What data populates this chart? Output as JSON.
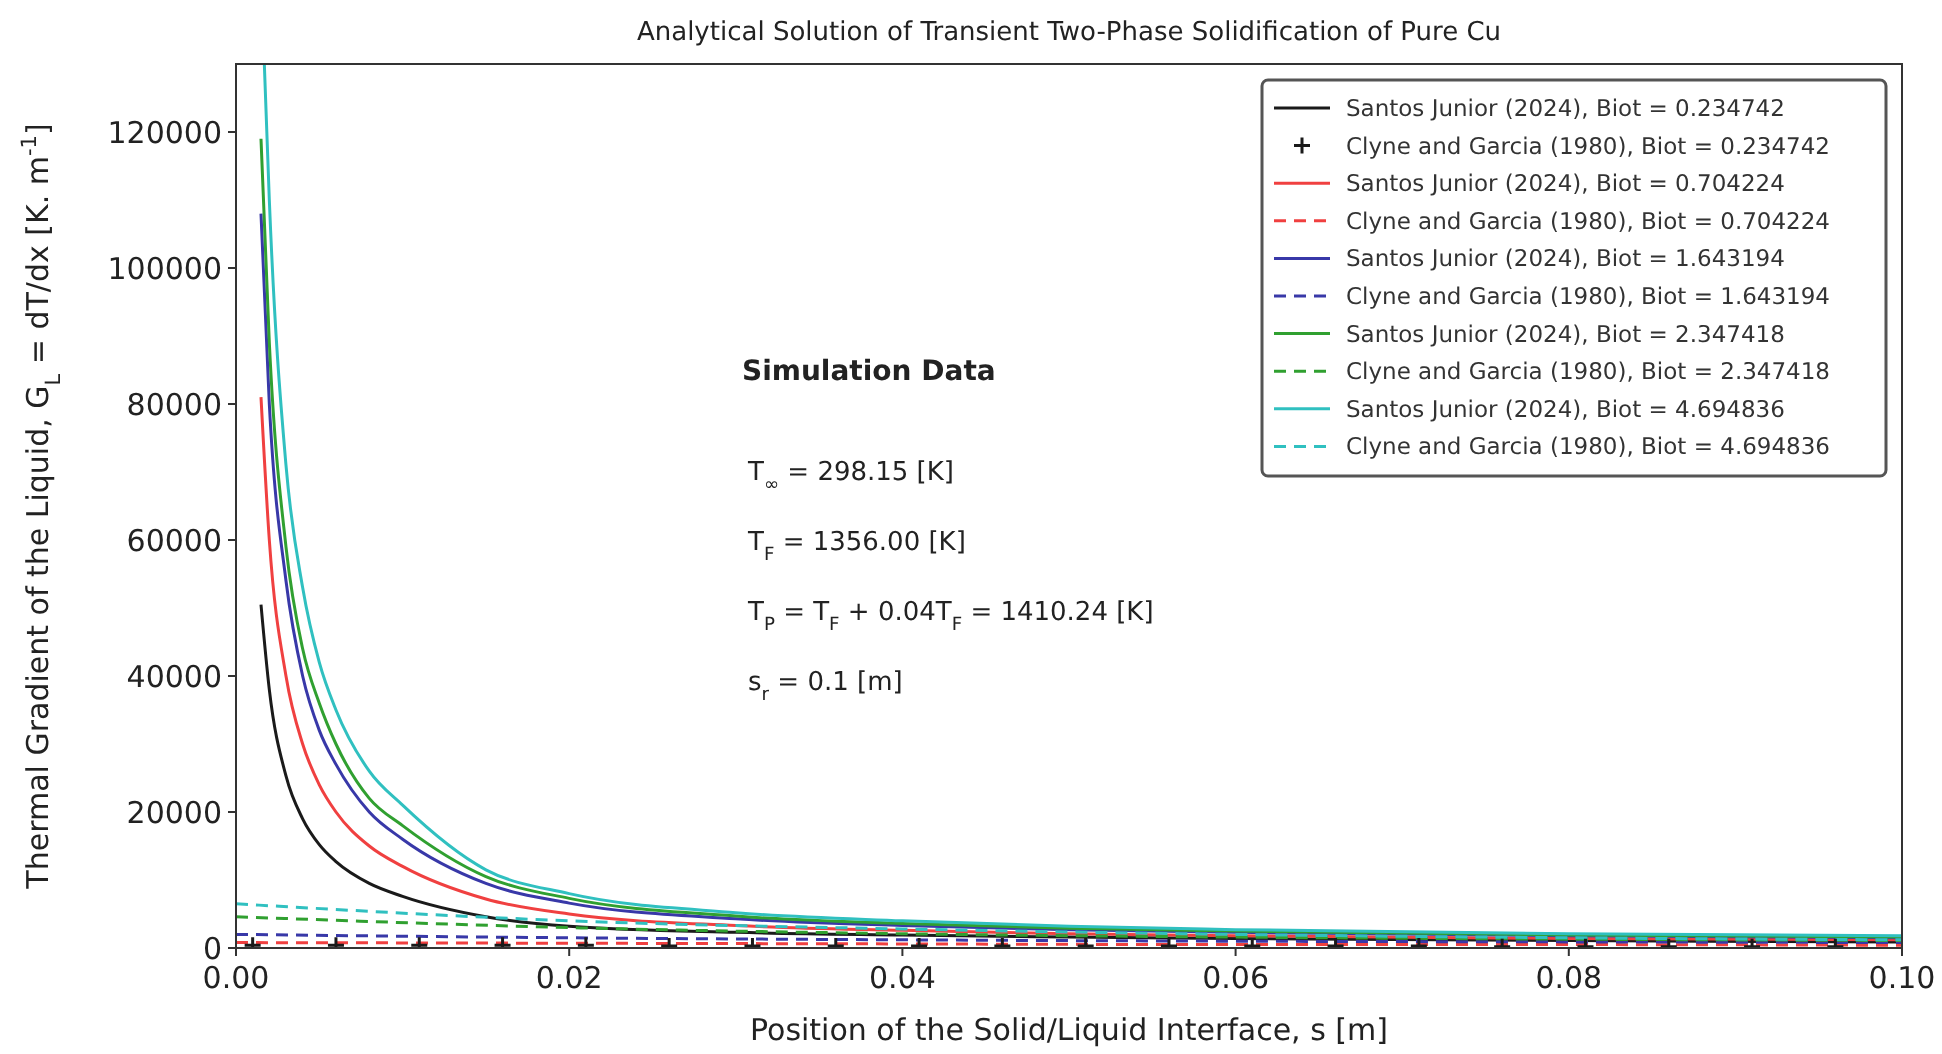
{
  "chart_data": {
    "type": "line",
    "title": "Analytical Solution of Transient Two-Phase Solidification of Pure Cu",
    "xlabel": "Position of the Solid/Liquid Interface, s [m]",
    "ylabel": "Thermal Gradient of the Liquid,  G$_{L}$ = dT/dx [K. m$^{-1}$]",
    "xlim": [
      0,
      0.1
    ],
    "ylim": [
      0,
      130000
    ],
    "xticks": [
      {
        "value": 0,
        "label": "0.00"
      },
      0.02,
      0.04,
      0.06,
      0.08,
      {
        "value": 0.1,
        "label": "0.10"
      }
    ],
    "yticks": [
      0,
      20000,
      40000,
      60000,
      80000,
      100000,
      120000
    ],
    "grid": false,
    "legend": "top right",
    "annotations": [
      "Simulation Data",
      "T$_{∞}$ = 298.15 [K]",
      "T$_{F}$ = 1356.00 [K]",
      "T$_{P}$ = T$_{F}$ + 0.04T$_{F}$ = 1410.24 [K]",
      "s$_{r}$ = 0.1 [m]"
    ],
    "series": [
      {
        "name": "Santos Junior (2024), Biot = 0.234742",
        "color": "#1a1a1a",
        "line_style": "solid",
        "marker": "none",
        "x": [
          0.0015,
          0.002,
          0.003,
          0.004,
          0.005,
          0.006,
          0.008,
          0.01,
          0.015,
          0.02,
          0.03,
          0.04,
          0.05,
          0.06,
          0.08,
          0.1
        ],
        "values": [
          50500,
          38000,
          25300,
          19000,
          15200,
          12700,
          9500,
          7600,
          4600,
          3200,
          2300,
          1900,
          1600,
          1400,
          1100,
          900
        ]
      },
      {
        "name": "Clyne and Garcia (1980), Biot = 0.234742",
        "type": "scatter",
        "color": "#1a1a1a",
        "marker": "cross",
        "x": [
          0.001,
          0.006,
          0.011,
          0.016,
          0.021,
          0.026,
          0.031,
          0.036,
          0.041,
          0.046,
          0.051,
          0.056,
          0.061,
          0.066,
          0.071,
          0.076,
          0.081,
          0.086,
          0.091,
          0.096
        ],
        "values": [
          400,
          400,
          400,
          400,
          400,
          300,
          300,
          300,
          300,
          300,
          300,
          300,
          300,
          300,
          300,
          200,
          200,
          200,
          200,
          200
        ]
      },
      {
        "name": "Santos Junior (2024), Biot = 0.704224",
        "color": "#f04040",
        "line_style": "solid",
        "marker": "none",
        "x": [
          0.0015,
          0.002,
          0.003,
          0.004,
          0.005,
          0.006,
          0.008,
          0.01,
          0.015,
          0.02,
          0.03,
          0.04,
          0.05,
          0.06,
          0.08,
          0.1
        ],
        "values": [
          81000,
          60000,
          40000,
          30000,
          24000,
          20000,
          15000,
          12000,
          7200,
          5000,
          3300,
          2600,
          2100,
          1800,
          1400,
          1200
        ]
      },
      {
        "name": "Clyne and Garcia (1980), Biot = 0.704224",
        "color": "#f04040",
        "line_style": "dashed",
        "marker": "none",
        "x": [
          0,
          0.02,
          0.04,
          0.06,
          0.08,
          0.1
        ],
        "values": [
          800,
          700,
          600,
          500,
          500,
          400
        ]
      },
      {
        "name": "Santos Junior (2024), Biot = 1.643194",
        "color": "#3838a8",
        "line_style": "solid",
        "marker": "none",
        "x": [
          0.0015,
          0.002,
          0.003,
          0.004,
          0.005,
          0.006,
          0.008,
          0.01,
          0.015,
          0.02,
          0.03,
          0.04,
          0.05,
          0.06,
          0.08,
          0.1
        ],
        "values": [
          108000,
          80000,
          54000,
          40000,
          32000,
          27000,
          20000,
          16000,
          9500,
          6600,
          4300,
          3300,
          2700,
          2300,
          1800,
          1500
        ]
      },
      {
        "name": "Clyne and Garcia (1980), Biot = 1.643194",
        "color": "#3838a8",
        "line_style": "dashed",
        "marker": "none",
        "x": [
          0,
          0.02,
          0.04,
          0.06,
          0.08,
          0.1
        ],
        "values": [
          2000,
          1500,
          1200,
          1000,
          900,
          800
        ]
      },
      {
        "name": "Santos Junior (2024), Biot = 2.347418",
        "color": "#30a030",
        "line_style": "solid",
        "marker": "none",
        "x": [
          0.0015,
          0.002,
          0.003,
          0.004,
          0.005,
          0.006,
          0.008,
          0.01,
          0.015,
          0.02,
          0.03,
          0.04,
          0.05,
          0.06,
          0.08,
          0.1
        ],
        "values": [
          119000,
          89000,
          59000,
          44000,
          36000,
          30000,
          22000,
          18000,
          10500,
          7300,
          4700,
          3600,
          2900,
          2500,
          1900,
          1600
        ]
      },
      {
        "name": "Clyne and Garcia (1980), Biot = 2.347418",
        "color": "#30a030",
        "line_style": "dashed",
        "marker": "none",
        "x": [
          0,
          0.02,
          0.04,
          0.06,
          0.08,
          0.1
        ],
        "values": [
          4600,
          3000,
          2100,
          1600,
          1300,
          1100
        ]
      },
      {
        "name": "Santos Junior (2024), Biot = 4.694836",
        "color": "#30c0c0",
        "line_style": "solid",
        "marker": "none",
        "x": [
          0.0017,
          0.002,
          0.003,
          0.004,
          0.005,
          0.006,
          0.008,
          0.01,
          0.015,
          0.02,
          0.03,
          0.04,
          0.05,
          0.06,
          0.08,
          0.1
        ],
        "values": [
          130000,
          110000,
          71000,
          53000,
          42000,
          35000,
          26000,
          21000,
          11500,
          8000,
          5200,
          4000,
          3200,
          2700,
          2100,
          1800
        ]
      },
      {
        "name": "Clyne and Garcia (1980), Biot = 4.694836",
        "color": "#30c0c0",
        "line_style": "dashed",
        "marker": "none",
        "x": [
          0,
          0.02,
          0.04,
          0.06,
          0.08,
          0.1
        ],
        "values": [
          6500,
          4000,
          2800,
          2000,
          1500,
          1200
        ]
      }
    ]
  }
}
